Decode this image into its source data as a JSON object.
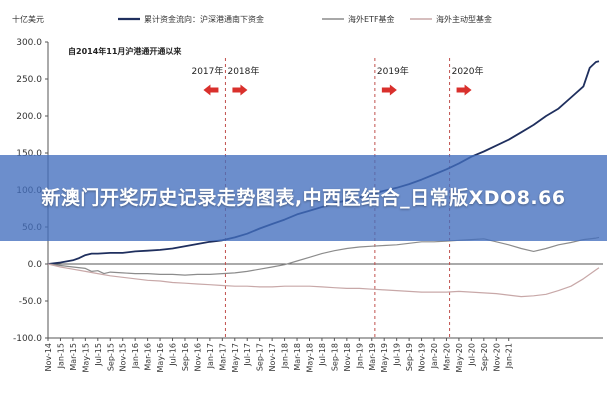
{
  "overlay_title": "新澳门开奖历史记录走势图表,中西医结合_日常版XDO8.66",
  "chart_data": {
    "type": "line",
    "y_unit_label": "十亿美元",
    "subtitle": "自2014年11月沪港通开通以来",
    "ylim": [
      -100,
      300
    ],
    "yticks": [
      "300.0",
      "250.0",
      "200.0",
      "150.0",
      "100.0",
      "50.0",
      "0.0",
      "-50.0",
      "-100.0"
    ],
    "ytick_values": [
      300,
      250,
      200,
      150,
      100,
      50,
      0,
      -50,
      -100
    ],
    "x_ticks": [
      "Nov-14",
      "Jan-15",
      "Mar-15",
      "May-15",
      "Jul-15",
      "Sep-15",
      "Nov-15",
      "Jan-16",
      "Mar-16",
      "May-16",
      "Jul-16",
      "Sep-16",
      "Nov-16",
      "Jan-17",
      "Mar-17",
      "May-17",
      "Jul-17",
      "Sep-17",
      "Nov-17",
      "Jan-18",
      "Mar-18",
      "May-18",
      "Jul-18",
      "Sep-18",
      "Nov-18",
      "Jan-19",
      "Mar-19",
      "May-19",
      "Jul-19",
      "Sep-19",
      "Nov-19",
      "Jan-20",
      "Mar-20",
      "May-20",
      "Jul-20",
      "Sep-20",
      "Nov-20",
      "Jan-21"
    ],
    "year_markers": [
      {
        "label": "2017年",
        "dir": "left",
        "month_index": 28.5
      },
      {
        "label": "2018年",
        "dir": "right",
        "month_index": 28.5
      },
      {
        "label": "2019年",
        "dir": "right",
        "month_index": 52.5
      },
      {
        "label": "2020年",
        "dir": "right",
        "month_index": 64.5
      }
    ],
    "series": [
      {
        "name": "累计资金流向：沪深港通南下资金",
        "color": "#1f2f5e",
        "style": "solid",
        "width": 1.8,
        "points": [
          [
            0,
            0
          ],
          [
            2,
            2
          ],
          [
            4,
            5
          ],
          [
            5,
            8
          ],
          [
            6,
            12
          ],
          [
            7,
            14
          ],
          [
            8,
            14
          ],
          [
            10,
            15
          ],
          [
            12,
            15
          ],
          [
            14,
            17
          ],
          [
            16,
            18
          ],
          [
            18,
            19
          ],
          [
            20,
            21
          ],
          [
            22,
            24
          ],
          [
            24,
            27
          ],
          [
            26,
            30
          ],
          [
            28,
            32
          ],
          [
            30,
            36
          ],
          [
            32,
            41
          ],
          [
            34,
            48
          ],
          [
            36,
            54
          ],
          [
            38,
            60
          ],
          [
            40,
            67
          ],
          [
            42,
            72
          ],
          [
            44,
            77
          ],
          [
            46,
            82
          ],
          [
            48,
            86
          ],
          [
            50,
            90
          ],
          [
            52,
            94
          ],
          [
            54,
            99
          ],
          [
            56,
            103
          ],
          [
            58,
            108
          ],
          [
            60,
            114
          ],
          [
            62,
            121
          ],
          [
            64,
            128
          ],
          [
            66,
            136
          ],
          [
            68,
            145
          ],
          [
            70,
            152
          ],
          [
            72,
            160
          ],
          [
            74,
            168
          ],
          [
            76,
            178
          ],
          [
            78,
            188
          ],
          [
            80,
            200
          ],
          [
            82,
            210
          ],
          [
            84,
            225
          ],
          [
            86,
            240
          ],
          [
            87,
            265
          ],
          [
            88,
            273
          ],
          [
            88.5,
            274
          ]
        ]
      },
      {
        "name": "海外ETF基金",
        "color": "#8c8c8c",
        "style": "solid",
        "width": 1.2,
        "points": [
          [
            0,
            0
          ],
          [
            2,
            -2
          ],
          [
            4,
            -4
          ],
          [
            6,
            -6
          ],
          [
            7,
            -10
          ],
          [
            8,
            -9
          ],
          [
            9,
            -13
          ],
          [
            10,
            -11
          ],
          [
            12,
            -12
          ],
          [
            14,
            -13
          ],
          [
            16,
            -13
          ],
          [
            18,
            -14
          ],
          [
            20,
            -14
          ],
          [
            22,
            -15
          ],
          [
            24,
            -14
          ],
          [
            26,
            -14
          ],
          [
            28,
            -13
          ],
          [
            30,
            -12
          ],
          [
            32,
            -10
          ],
          [
            34,
            -7
          ],
          [
            36,
            -4
          ],
          [
            38,
            -1
          ],
          [
            40,
            4
          ],
          [
            42,
            9
          ],
          [
            44,
            14
          ],
          [
            46,
            18
          ],
          [
            48,
            21
          ],
          [
            50,
            23
          ],
          [
            52,
            24
          ],
          [
            54,
            25
          ],
          [
            56,
            26
          ],
          [
            58,
            28
          ],
          [
            60,
            30
          ],
          [
            62,
            30
          ],
          [
            64,
            31
          ],
          [
            66,
            32
          ],
          [
            68,
            33
          ],
          [
            70,
            34
          ],
          [
            72,
            30
          ],
          [
            74,
            26
          ],
          [
            76,
            21
          ],
          [
            78,
            17
          ],
          [
            80,
            21
          ],
          [
            82,
            26
          ],
          [
            84,
            29
          ],
          [
            86,
            33
          ],
          [
            88,
            35
          ],
          [
            88.5,
            36
          ]
        ]
      },
      {
        "name": "海外主动型基金",
        "color": "#c8a8a8",
        "style": "solid",
        "width": 1.2,
        "points": [
          [
            0,
            0
          ],
          [
            2,
            -4
          ],
          [
            4,
            -7
          ],
          [
            6,
            -10
          ],
          [
            8,
            -13
          ],
          [
            10,
            -16
          ],
          [
            12,
            -18
          ],
          [
            14,
            -20
          ],
          [
            16,
            -22
          ],
          [
            18,
            -23
          ],
          [
            20,
            -25
          ],
          [
            22,
            -26
          ],
          [
            24,
            -27
          ],
          [
            26,
            -28
          ],
          [
            28,
            -29
          ],
          [
            30,
            -30
          ],
          [
            32,
            -30
          ],
          [
            34,
            -31
          ],
          [
            36,
            -31
          ],
          [
            38,
            -30
          ],
          [
            40,
            -30
          ],
          [
            42,
            -30
          ],
          [
            44,
            -31
          ],
          [
            46,
            -32
          ],
          [
            48,
            -33
          ],
          [
            50,
            -33
          ],
          [
            52,
            -34
          ],
          [
            54,
            -35
          ],
          [
            56,
            -36
          ],
          [
            58,
            -37
          ],
          [
            60,
            -38
          ],
          [
            62,
            -38
          ],
          [
            64,
            -38
          ],
          [
            66,
            -37
          ],
          [
            68,
            -38
          ],
          [
            70,
            -39
          ],
          [
            72,
            -40
          ],
          [
            74,
            -42
          ],
          [
            76,
            -44
          ],
          [
            78,
            -43
          ],
          [
            80,
            -41
          ],
          [
            82,
            -36
          ],
          [
            84,
            -30
          ],
          [
            86,
            -20
          ],
          [
            88,
            -8
          ],
          [
            88.5,
            -5
          ]
        ]
      }
    ]
  }
}
